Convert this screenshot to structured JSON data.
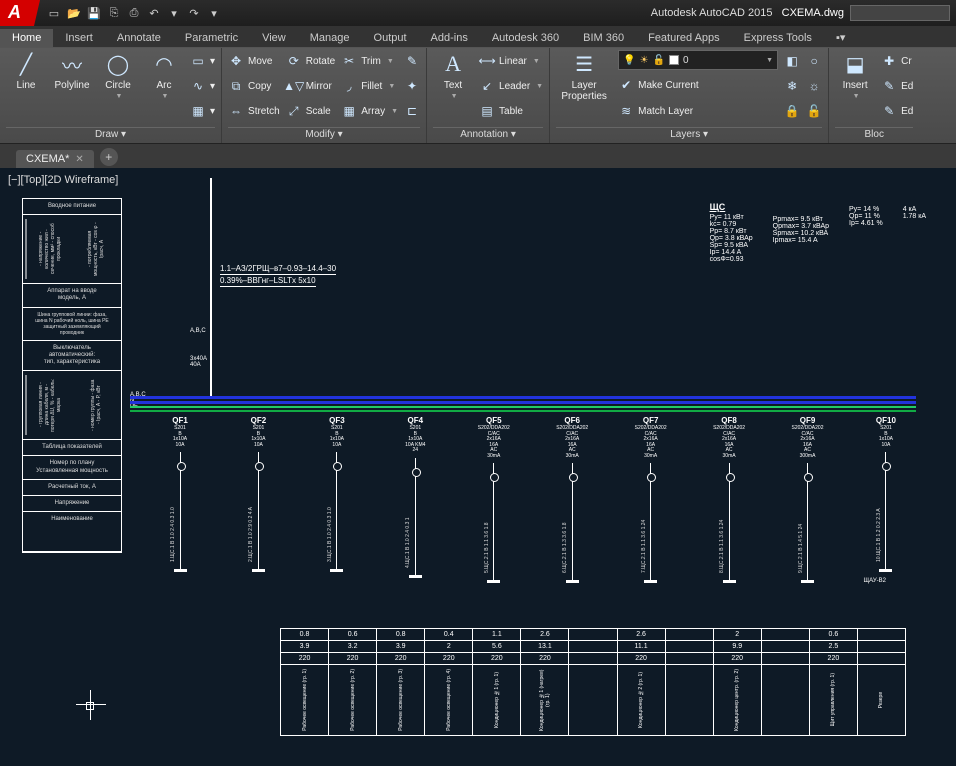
{
  "app": {
    "name": "Autodesk AutoCAD 2015",
    "document": "CXEMA.dwg"
  },
  "qat_icons": [
    "new",
    "open",
    "save",
    "saveas",
    "plot",
    "undo",
    "redo"
  ],
  "tabs": [
    "Home",
    "Insert",
    "Annotate",
    "Parametric",
    "View",
    "Manage",
    "Output",
    "Add-ins",
    "Autodesk 360",
    "BIM 360",
    "Featured Apps",
    "Express Tools"
  ],
  "active_tab": "Home",
  "ribbon": {
    "draw": {
      "title": "Draw ▾",
      "line": "Line",
      "polyline": "Polyline",
      "circle": "Circle",
      "arc": "Arc"
    },
    "modify": {
      "title": "Modify ▾",
      "move": "Move",
      "rotate": "Rotate",
      "trim": "Trim",
      "copy": "Copy",
      "mirror": "Mirror",
      "fillet": "Fillet",
      "stretch": "Stretch",
      "scale": "Scale",
      "array": "Array"
    },
    "annotation": {
      "title": "Annotation ▾",
      "text": "Text",
      "linear": "Linear",
      "leader": "Leader",
      "table": "Table"
    },
    "layers": {
      "title": "Layers ▾",
      "props": "Layer\nProperties",
      "current_layer": "0",
      "make_current": "Make Current",
      "match": "Match Layer"
    },
    "insert_panel": {
      "title": "Bloc",
      "insert": "Insert",
      "create": "Cr",
      "edit": "Ed",
      "edit2": "Ed"
    }
  },
  "doc_tab": "CXEMA*",
  "view_label": "[−][Top][2D Wireframe]",
  "feeder": {
    "line1": "1.1–АЗ/2ГРЩ–в7–0.93–14.4–30",
    "line2": "0.39%–ВВГнг–LSLTx  5x10",
    "phase": "A,B,C",
    "amp1": "3x40A",
    "amp2": "40A",
    "buslabel": "A,B,C\nN\nPE"
  },
  "header_block": {
    "title": "ЩС",
    "col1": [
      "Py=  11 кВт",
      "kc=  0.79",
      "Pp=  8.7 кВт",
      "Qp=  3.8 кВАр",
      "Sp=  9.5 кВА",
      "Ip=  14.4 A",
      "cosФ=0.93"
    ],
    "col2": [
      "Ppmax= 9.5 кВт",
      "Qpmax= 3.7 кВАр",
      "Spmax= 10.2 кВА",
      "Ipmax= 15.4 A"
    ],
    "col3": [
      "Py= 14 %",
      "Qp= 11 %",
      "Ip= 4.61 %"
    ],
    "col4": [
      "4 кА",
      "1.78 кА"
    ]
  },
  "busbars": {
    "colors": {
      "L": "#2233dd",
      "N": "#2233dd",
      "PE": "#11aa44",
      "aux": "#22cc66"
    }
  },
  "circuits": [
    {
      "name": "QF1",
      "spec": "S201\nB\n1x10A\n10A",
      "cable": "1.ЩС.1 B 1.0 2.4 0.3 1.0",
      "load": "Рабочее освещение\n(гр. 1)"
    },
    {
      "name": "QF2",
      "spec": "S201\nB\n1x10A\n10A",
      "cable": "2.ЩС.1 B 1.0 2.9 0.2 4 A",
      "load": "Рабочее освещение\n(гр. 2)"
    },
    {
      "name": "QF3",
      "spec": "S201\nB\n1x10A\n10A",
      "cable": "3.ЩС.1 B 1.0 2.4 0.3 1.0",
      "load": "Рабочее освещение\n(гр. 3)"
    },
    {
      "name": "QF4",
      "spec": "S201\nB\n1x10A\n10A  KM4\n24",
      "cable": "4.ЩС.1 B 1.0 2.4 0.3 1",
      "load": "Рабочее освещение\n(гр. 4)"
    },
    {
      "name": "QF5",
      "spec": "S202/DDA202\nC/AC\n2x16A\n16A\nAC\n30mA",
      "cable": "5.ЩС.2.1 B 1.1 3.6 1.8",
      "load": "Кондиционер №1\n(холод. пит-е)\n(гр. 1)"
    },
    {
      "name": "QF6",
      "spec": "S202/DDA202\nC/AC\n2x16A\n16A\nAC\n30mA",
      "cable": "6.ЩС.2.1 B 1.3 3.6 1.8",
      "load": "Кондиционер №1\n(нагрев. пит-е)\n(гр. 1)"
    },
    {
      "name": "QF7",
      "spec": "S202/DDA202\nC/AC\n2x16A\n16A\nAC\n30mA",
      "cable": "7.ЩС.2.1 B 1.1 3.6 1.24",
      "load": "Кондиционер №2\n(гр. 1)"
    },
    {
      "name": "QF8",
      "spec": "S202/DDA202\nC/AC\n2x16A\n16A\nAC\n30mA",
      "cable": "8.ЩС.2.1 B 1.1 3.6 1.24",
      "load": "Кондиционер\nцентральный\n(гр. 2)"
    },
    {
      "name": "QF9",
      "spec": "S202/DDA202\nC/AC\n2x16A\n16A\nAC\n300mA",
      "cable": "9.ЩС.2.1 B 1.4 5.1 24",
      "load": "Эл. розетки\n(гр. 2)"
    },
    {
      "name": "QF10",
      "spec": "S201\nB\n1x10A\n10A",
      "cable": "10.ЩС.1 B 1.2 0.2 2.3 A",
      "load": "Щит управления\nвентиляцией\n(гр. 1)"
    }
  ],
  "extra_label": "ЩАУ-В2",
  "table": {
    "rows": [
      [
        "0.8",
        "0.6",
        "0.8",
        "0.4",
        "1.1",
        "2.6",
        "",
        "2.6",
        "",
        "2",
        "",
        "0.6",
        ""
      ],
      [
        "3.9",
        "3.2",
        "3.9",
        "2",
        "5.6",
        "13.1",
        "",
        "11.1",
        "",
        "9.9",
        "",
        "2.5",
        ""
      ],
      [
        "220",
        "220",
        "220",
        "220",
        "220",
        "220",
        "",
        "220",
        "",
        "220",
        "",
        "220",
        ""
      ]
    ],
    "labels": [
      "Рабочее освещение (гр. 1)",
      "Рабочее освещение (гр. 2)",
      "Рабочее освещение (гр. 3)",
      "Рабочее освещение (гр. 4)",
      "Кондиционер №1 (гр. 1)",
      "Кондиционер №1 (нагрев) (гр. 1)",
      "",
      "Кондиционер №2 (гр. 1)",
      "",
      "Кондиционер центр. (гр. 2)",
      "",
      "Щит управления (гр. 1)",
      "Резерв"
    ]
  },
  "legend_cells": [
    "Вводное питание",
    [
      "- напряжение\n- количество жил\n- сечение, мм²\n- способ прокладки",
      "- потребляемая\n  мощность, кВт\n- cos φ\n- Iрасч, А"
    ],
    "Аппарат на вводе\nмодель, А",
    "Шина групповой линии: фаза,\nшина N рабочий ноль, шина PE\nзащитный заземляющий\nпроводник",
    "Выключатель\nавтоматический:\nтип, характеристика",
    [
      "- групповая линия\n- длина кабеля, м\n- потеря ΔU, %\n- кабель: марка",
      "- номер группы\n- фаза\n- Iрасч, А\n- P, кВт"
    ],
    "Таблица показателей",
    "Номер по плану\nУстановленная мощность",
    "Расчетный ток, А",
    "Напряжение",
    "Наименование"
  ]
}
